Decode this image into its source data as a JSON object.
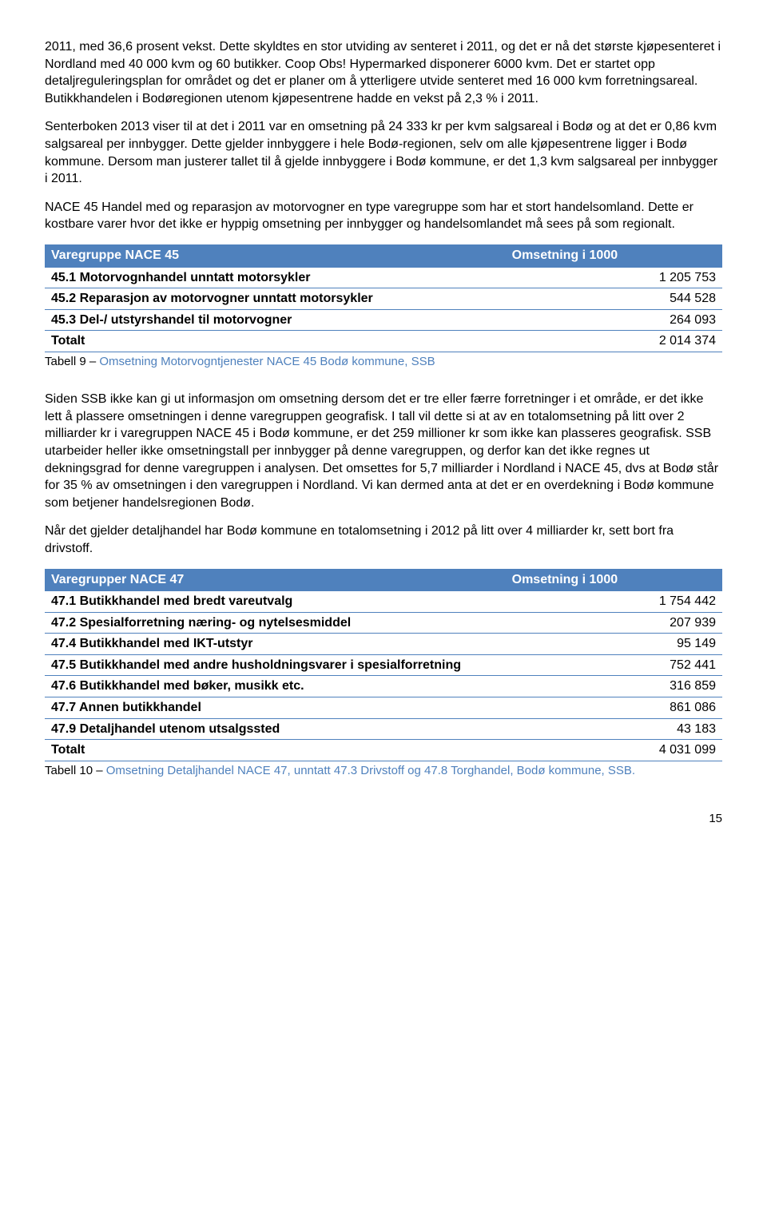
{
  "para1": "2011, med 36,6 prosent vekst. Dette skyldtes en stor utviding av senteret i 2011, og det er nå det største kjøpesenteret i Nordland med 40 000 kvm og 60 butikker. Coop Obs! Hypermarked disponerer 6000 kvm. Det er startet opp detaljreguleringsplan for området og det er planer om å ytterligere utvide senteret med 16 000 kvm forretningsareal. Butikkhandelen i Bodøregionen utenom kjøpesentrene hadde en vekst på 2,3 % i 2011.",
  "para2": "Senterboken 2013 viser til at det i 2011 var en omsetning på 24 333 kr per kvm salgsareal i Bodø og at det er 0,86 kvm salgsareal per innbygger. Dette gjelder innbyggere i hele Bodø-regionen, selv om alle kjøpesentrene ligger i Bodø kommune. Dersom man justerer tallet til å gjelde innbyggere i Bodø kommune, er det 1,3 kvm salgsareal per innbygger i 2011.",
  "para3": "NACE 45 Handel med og reparasjon av motorvogner en type varegruppe som har et stort handelsomland. Dette er kostbare varer hvor det ikke er hyppig omsetning per innbygger og handelsomlandet må sees på som regionalt.",
  "table1": {
    "header": [
      "Varegruppe NACE 45",
      "Omsetning i 1000"
    ],
    "rows": [
      [
        "45.1 Motorvognhandel unntatt motorsykler",
        "1 205 753"
      ],
      [
        "45.2 Reparasjon av motorvogner unntatt motorsykler",
        "544 528"
      ],
      [
        "45.3 Del-/ utstyrshandel til motorvogner",
        "264 093"
      ],
      [
        "Totalt",
        "2 014 374"
      ]
    ],
    "caption_lead": "Tabell 9 – ",
    "caption": "Omsetning Motorvogntjenester NACE 45 Bodø kommune, SSB"
  },
  "para4": "Siden SSB ikke kan gi ut informasjon om omsetning dersom det er tre eller færre forretninger i et område, er det ikke lett å plassere omsetningen i denne varegruppen geografisk. I tall vil dette si at av en totalomsetning på litt over 2 milliarder kr i varegruppen NACE 45 i Bodø kommune, er det 259 millioner kr som ikke kan plasseres geografisk. SSB utarbeider heller ikke omsetningstall per innbygger på denne varegruppen, og derfor kan det ikke regnes ut dekningsgrad for denne varegruppen i analysen. Det omsettes for 5,7 milliarder i Nordland i NACE 45, dvs at Bodø står for 35 % av omsetningen i den varegruppen i Nordland. Vi kan dermed anta at det er en overdekning i Bodø kommune som betjener handelsregionen Bodø.",
  "para5": "Når det gjelder detaljhandel har Bodø kommune en totalomsetning i 2012 på litt over 4 milliarder kr, sett bort fra drivstoff.",
  "table2": {
    "header": [
      "Varegrupper NACE 47",
      "Omsetning i 1000"
    ],
    "rows": [
      [
        "47.1 Butikkhandel med bredt vareutvalg",
        "1 754 442"
      ],
      [
        "47.2 Spesialforretning næring- og nytelsesmiddel",
        "207 939"
      ],
      [
        "47.4 Butikkhandel med IKT-utstyr",
        "95 149"
      ],
      [
        "47.5 Butikkhandel med andre husholdningsvarer i spesialforretning",
        "752 441"
      ],
      [
        "47.6 Butikkhandel med bøker, musikk etc.",
        "316 859"
      ],
      [
        "47.7 Annen butikkhandel",
        "861 086"
      ],
      [
        "47.9 Detaljhandel utenom utsalgssted",
        "43 183"
      ],
      [
        "Totalt",
        "4 031 099"
      ]
    ],
    "caption_lead": "Tabell 10 – ",
    "caption": "Omsetning Detaljhandel NACE 47, unntatt 47.3 Drivstoff og 47.8 Torghandel, Bodø kommune, SSB."
  },
  "pagenum": "15"
}
